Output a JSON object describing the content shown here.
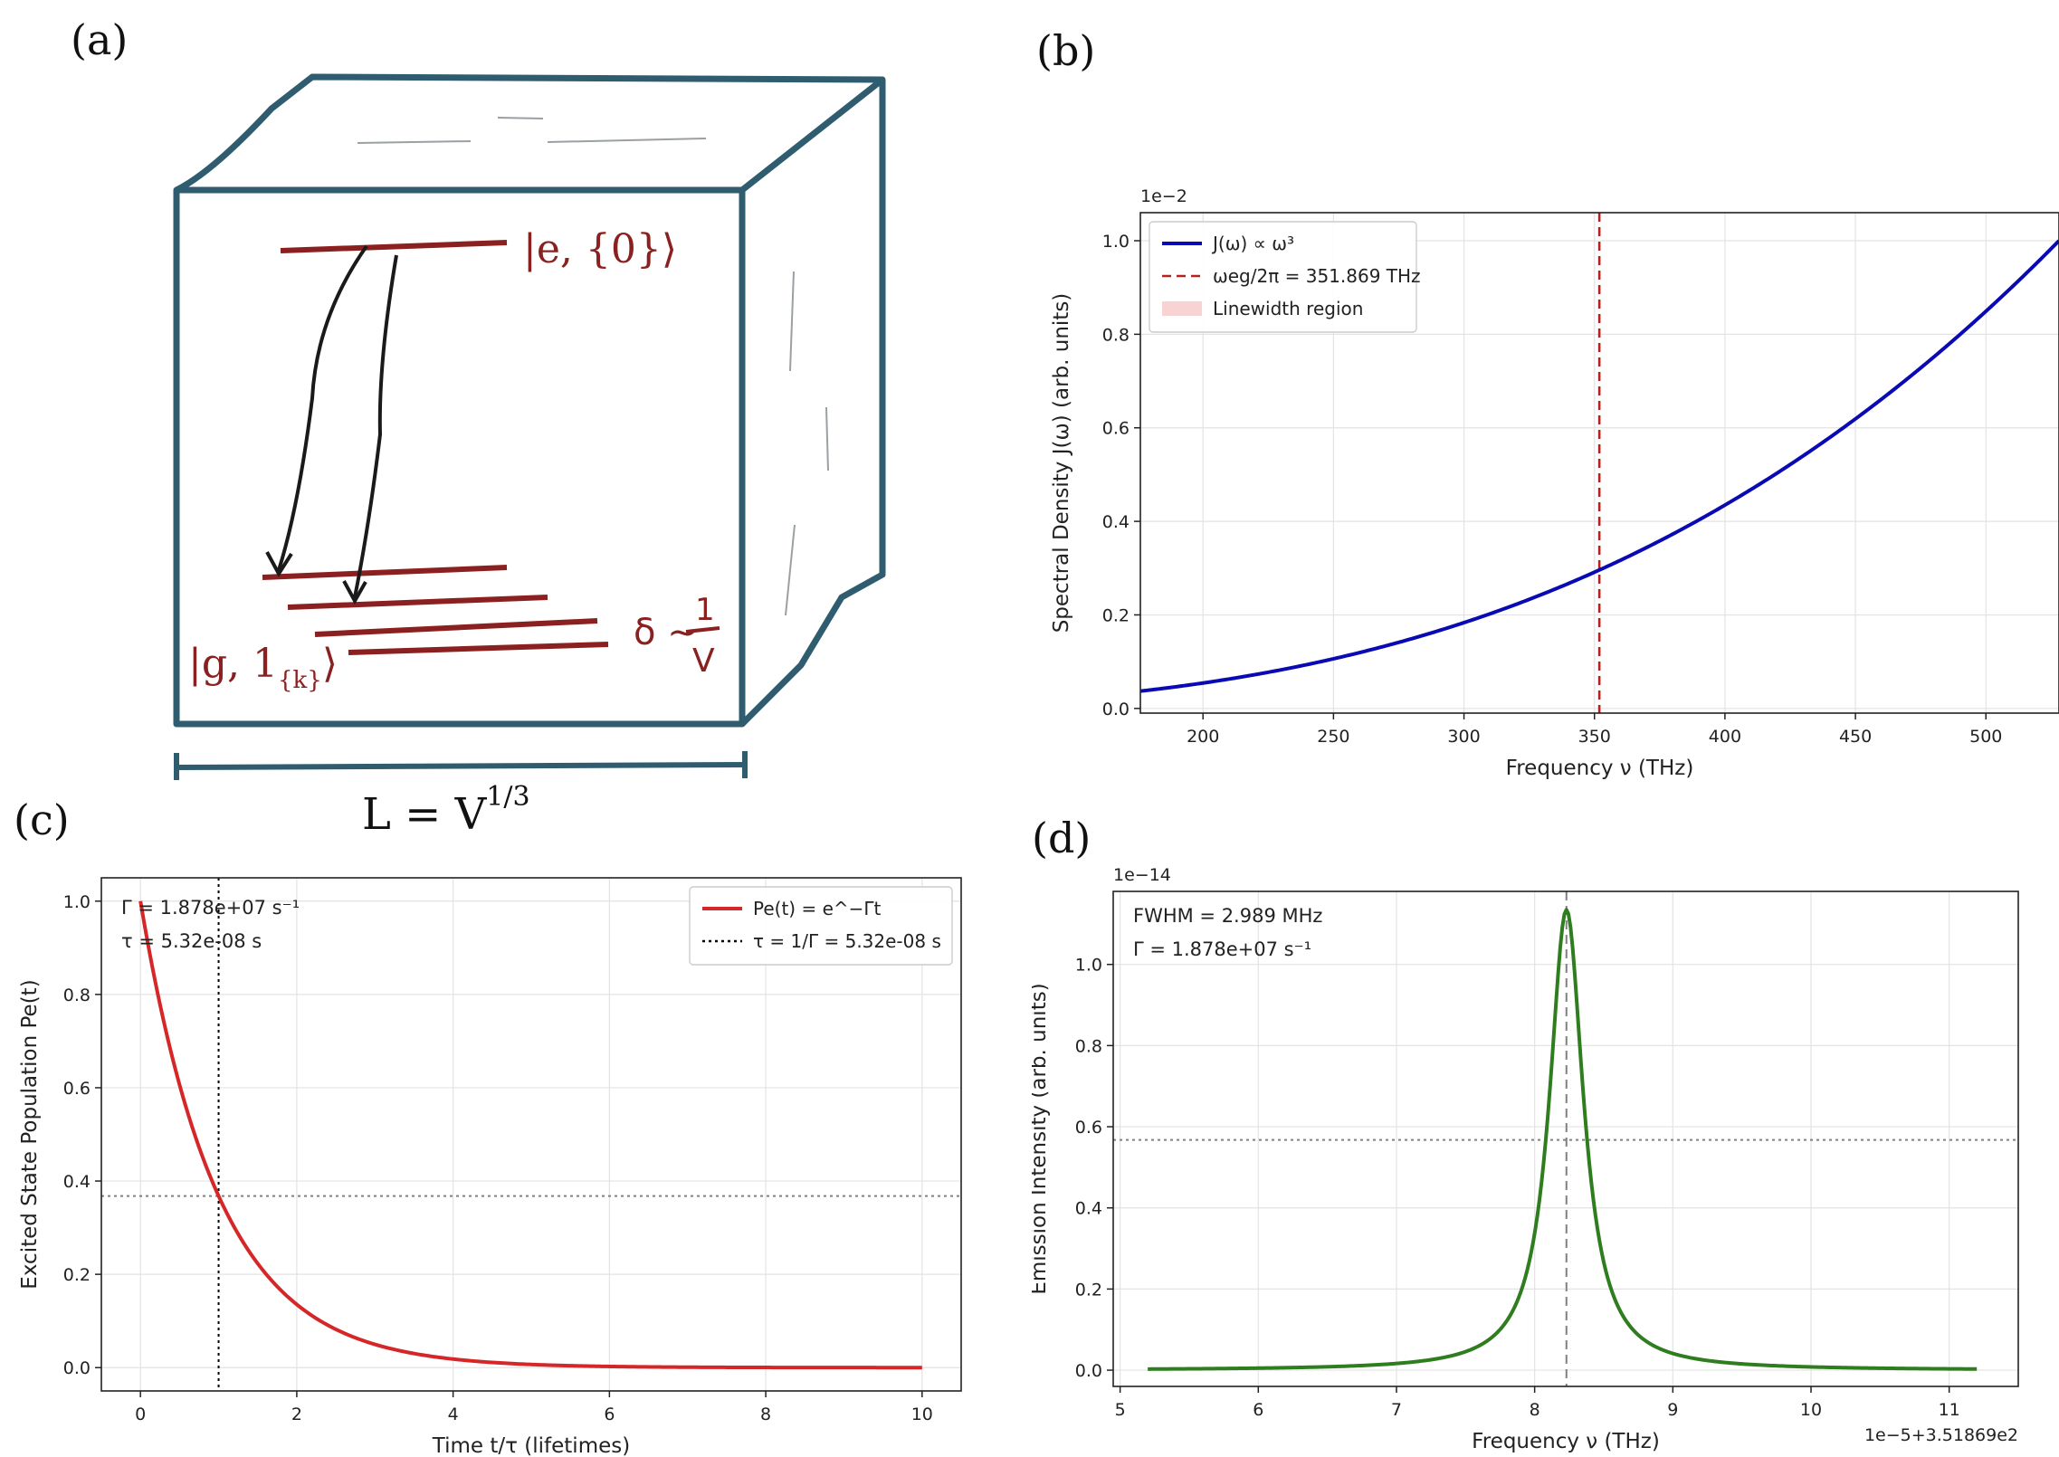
{
  "panel_a": {
    "label": "(a)",
    "excited_state": "|e, {0}⟩",
    "ground_state": "|g, 1",
    "ground_state_sub": "{k}",
    "ground_state_close": "⟩",
    "spacing_lhs": "δ ~",
    "spacing_num": "1",
    "spacing_den": "V",
    "length_label": "L = V",
    "length_exp": "1/3"
  },
  "chart_data": [
    {
      "panel": "(b)",
      "type": "line",
      "xlabel": "Frequency ν (THz)",
      "ylabel": "Spectral Density J(ω) (arb. units)",
      "y_offset_label": "1e−2",
      "xlim": [
        176,
        528
      ],
      "ylim": [
        -0.01,
        1.06
      ],
      "xticks": [
        200,
        250,
        300,
        350,
        400,
        450,
        500
      ],
      "yticks": [
        0.0,
        0.2,
        0.4,
        0.6,
        0.8,
        1.0
      ],
      "grid": true,
      "legend_position": "top-left",
      "legend": [
        "J(ω) ∝ ω³",
        "ωeg/2π = 351.869 THz",
        "Linewidth region"
      ],
      "series": [
        {
          "name": "J(ω) ∝ ω³",
          "color": "#0a0ab4",
          "style": "solid",
          "function": "cubic",
          "x_range": [
            176,
            528
          ],
          "y_at_xmax": 1.0
        }
      ],
      "vlines": [
        {
          "x": 351.869,
          "color": "#b22222",
          "style": "dashed"
        }
      ]
    },
    {
      "panel": "(c)",
      "type": "line",
      "xlabel": "Time t/τ (lifetimes)",
      "ylabel": "Excited State Population Pe(t)",
      "xlim": [
        -0.5,
        10.5
      ],
      "ylim": [
        -0.05,
        1.05
      ],
      "xticks": [
        0,
        2,
        4,
        6,
        8,
        10
      ],
      "yticks": [
        0.0,
        0.2,
        0.4,
        0.6,
        0.8,
        1.0
      ],
      "grid": true,
      "legend_position": "top-right",
      "legend": [
        "Pe(t) = e^−Γt",
        "τ = 1/Γ = 5.32e-08 s"
      ],
      "annotations": [
        "Γ = 1.878e+07 s⁻¹",
        "τ = 5.32e-08 s"
      ],
      "series": [
        {
          "name": "Pe(t) = e^−Γt",
          "color": "#d62728",
          "style": "solid",
          "function": "exp_decay",
          "x_range": [
            0,
            10
          ]
        }
      ],
      "vlines": [
        {
          "x": 1,
          "color": "#000000",
          "style": "dotted"
        }
      ],
      "hlines": [
        {
          "y": 0.3679,
          "color": "#808080",
          "style": "dotted"
        }
      ]
    },
    {
      "panel": "(d)",
      "type": "line",
      "xlabel": "Frequency ν (THz)",
      "ylabel": "Emission Intensity (arb. units)",
      "y_offset_label": "1e−14",
      "x_offset_label": "1e−5+3.51869e2",
      "xlim": [
        4.95,
        11.5
      ],
      "ylim": [
        -0.04,
        1.18
      ],
      "xticks": [
        5,
        6,
        7,
        8,
        9,
        10,
        11
      ],
      "yticks": [
        0.0,
        0.2,
        0.4,
        0.6,
        0.8,
        1.0
      ],
      "grid": true,
      "annotations": [
        "FWHM = 2.989 MHz",
        "Γ = 1.878e+07 s⁻¹"
      ],
      "series": [
        {
          "name": "Emission",
          "color": "#2e7d1e",
          "style": "solid",
          "function": "lorentzian",
          "x_range": [
            5.2,
            11.2
          ],
          "center": 8.23,
          "peak": 1.135,
          "fwhm": 0.299
        }
      ],
      "vlines": [
        {
          "x": 8.23,
          "color": "#808080",
          "style": "dashed"
        }
      ],
      "hlines": [
        {
          "y": 0.5675,
          "color": "#808080",
          "style": "dotted"
        }
      ]
    }
  ]
}
